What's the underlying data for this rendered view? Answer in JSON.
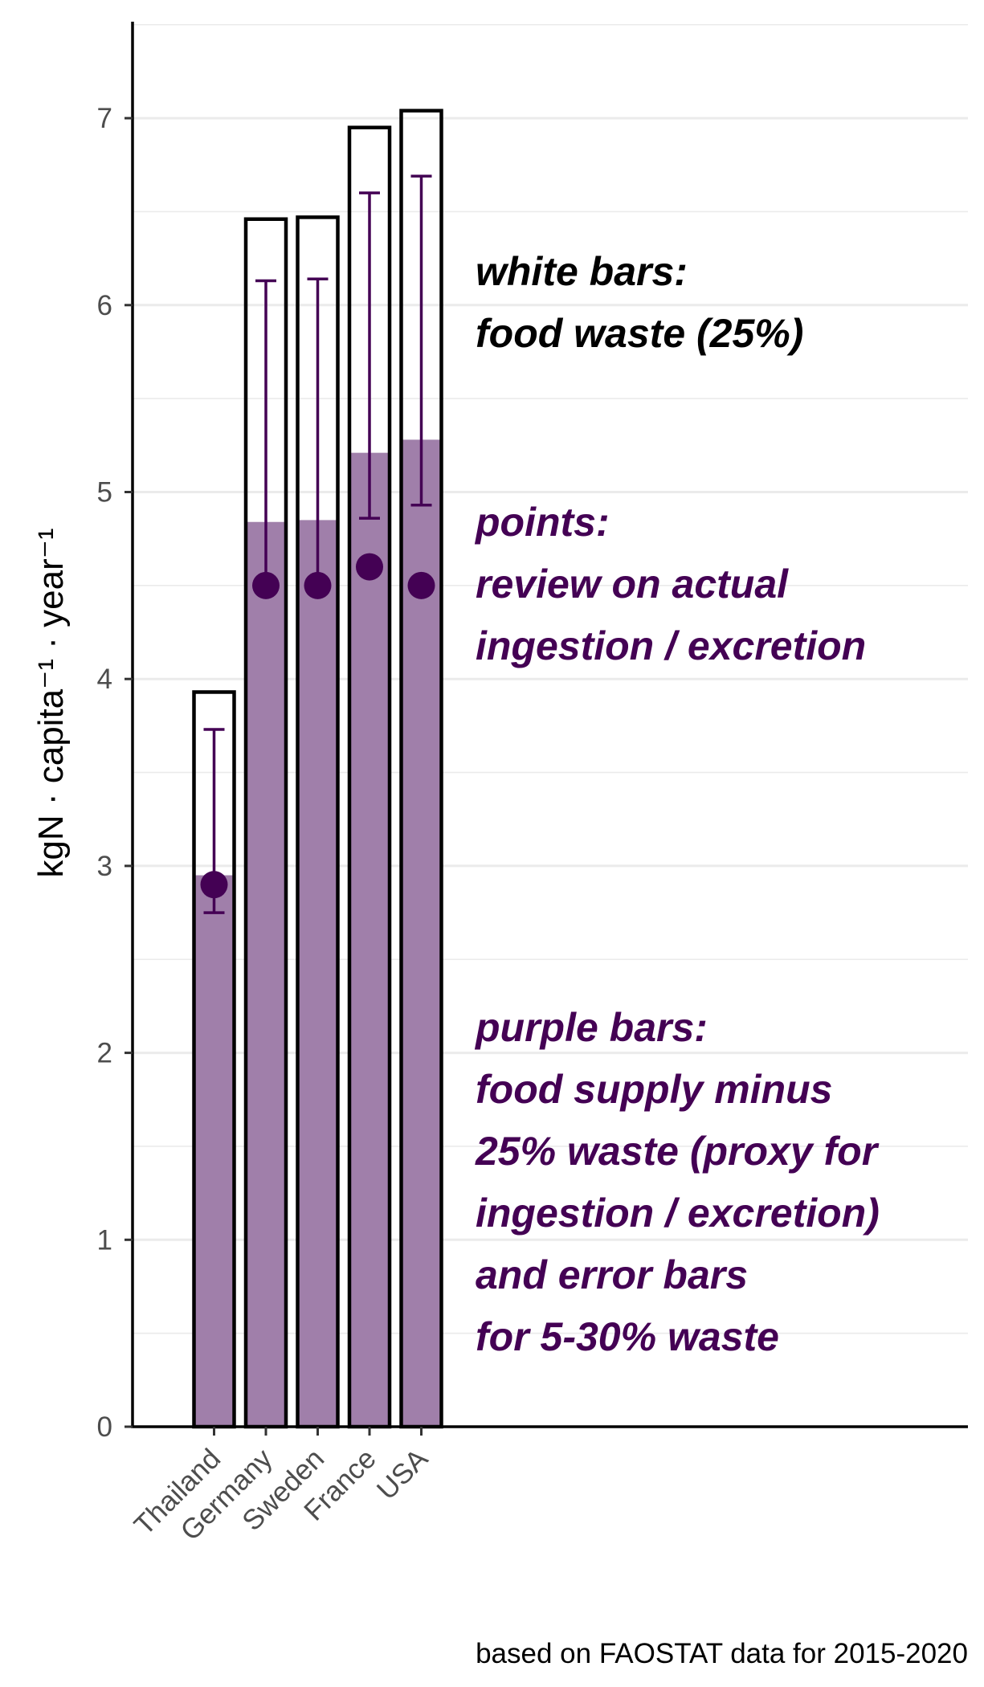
{
  "chart_data": {
    "type": "bar",
    "categories": [
      "Thailand",
      "Germany",
      "Sweden",
      "France",
      "USA"
    ],
    "series": [
      {
        "values": [
          3.93,
          6.46,
          6.47,
          6.95,
          7.04
        ]
      },
      {
        "values": [
          2.95,
          4.84,
          4.85,
          5.21,
          5.28
        ]
      },
      {
        "values": [
          2.9,
          4.5,
          4.5,
          4.6,
          4.5
        ]
      }
    ],
    "error_bars": {
      "lower": [
        2.75,
        4.52,
        4.53,
        4.86,
        4.93
      ],
      "upper": [
        3.73,
        6.13,
        6.14,
        6.6,
        6.69
      ]
    },
    "yticks": [
      "0",
      "1",
      "2",
      "3",
      "4",
      "5",
      "6",
      "7"
    ],
    "ylim": [
      0,
      7.5
    ],
    "ylabel": "kgN · capita⁻¹ · year⁻¹",
    "xlabel": "",
    "grid": "horizontal",
    "annotations": {
      "white_bars": [
        "white bars:",
        "food waste (25%)"
      ],
      "points": [
        "points:",
        "review on actual",
        "ingestion / excretion"
      ],
      "purple_bars": [
        "purple bars:",
        "food supply minus",
        "25% waste (proxy for",
        "ingestion / excretion)",
        "and error bars",
        "for 5-30% waste"
      ]
    },
    "caption": "based on FAOSTAT data for 2015-2020"
  },
  "colors": {
    "purple_fill": "#a07faa",
    "dark_purple": "#440154",
    "outline": "#000000",
    "grid": "#ebebeb",
    "tick_text": "#4d4d4d"
  }
}
